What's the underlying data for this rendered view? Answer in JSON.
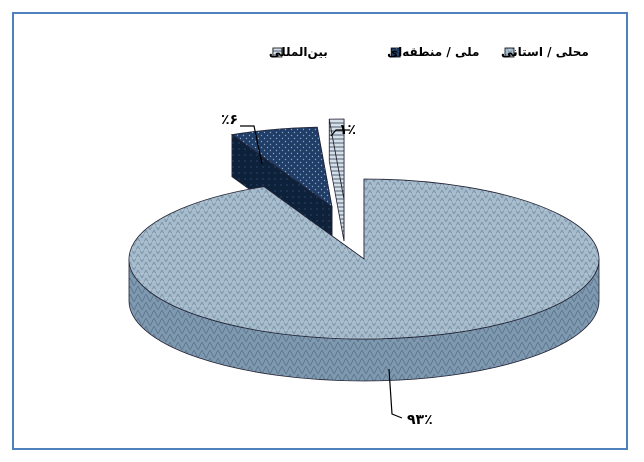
{
  "chart_data": {
    "type": "pie",
    "style": "3d-exploded",
    "title": "",
    "legend_position": "top",
    "categories": [
      "محلی / استانی",
      "ملی / منطقه‌ای",
      "بین‌المللی"
    ],
    "values": [
      93,
      6,
      1
    ],
    "data_labels": [
      "۹۳٪",
      "٪۶",
      "۱٪"
    ],
    "colors": [
      "#9cb3c6",
      "#1f3d66",
      "#9aa9b8"
    ]
  }
}
